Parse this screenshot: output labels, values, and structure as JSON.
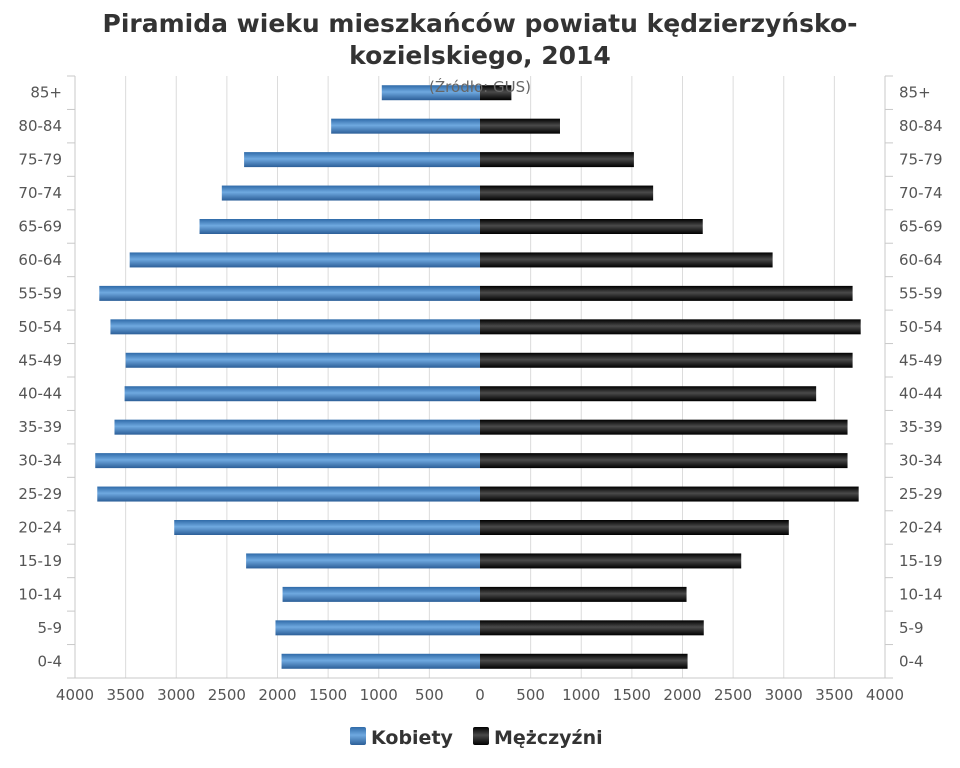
{
  "chart_data": {
    "type": "bar",
    "orientation": "horizontal",
    "layout": "population-pyramid",
    "title": "Piramida wieku mieszkańców powiatu kędzierzyńsko-kozielskiego, 2014",
    "title_lines": [
      "Piramida wieku mieszkańców powiatu kędzierzyńsko-",
      "kozielskiego, 2014"
    ],
    "subtitle": "(Źródło: GUS)",
    "categories": [
      "85+",
      "80-84",
      "75-79",
      "70-74",
      "65-69",
      "60-64",
      "55-59",
      "50-54",
      "45-49",
      "40-44",
      "35-39",
      "30-34",
      "25-29",
      "20-24",
      "15-19",
      "10-14",
      "5-9",
      "0-4"
    ],
    "xlim": [
      -4000,
      4000
    ],
    "x_ticks": [
      -4000,
      -3500,
      -3000,
      -2500,
      -2000,
      -1500,
      -1000,
      -500,
      0,
      500,
      1000,
      1500,
      2000,
      2500,
      3000,
      3500,
      4000
    ],
    "x_tick_labels": [
      "4000",
      "3500",
      "3000",
      "2500",
      "2000",
      "1500",
      "1000",
      "500",
      "0",
      "500",
      "1000",
      "1500",
      "2000",
      "2500",
      "3000",
      "3500",
      "4000"
    ],
    "grid": true,
    "legend_position": "bottom-center",
    "series": [
      {
        "name": "Kobiety",
        "side": "left",
        "color": "#3a7bbf",
        "values": [
          970,
          1470,
          2330,
          2550,
          2770,
          3460,
          3760,
          3650,
          3500,
          3510,
          3610,
          3800,
          3780,
          3020,
          2310,
          1950,
          2020,
          1960
        ]
      },
      {
        "name": "Mężczyźni",
        "side": "right",
        "color": "#1a1a1a",
        "values": [
          310,
          790,
          1520,
          1710,
          2200,
          2890,
          3680,
          3760,
          3680,
          3320,
          3630,
          3630,
          3740,
          3050,
          2580,
          2040,
          2210,
          2050
        ]
      }
    ]
  }
}
